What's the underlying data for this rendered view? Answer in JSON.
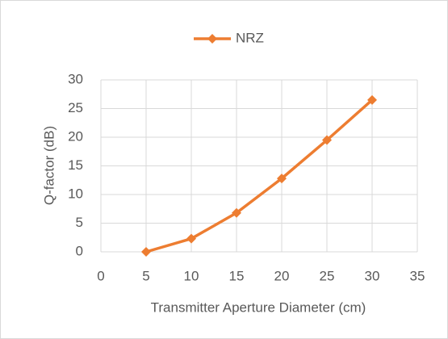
{
  "chart_data": {
    "type": "line",
    "x_label": "Transmitter Aperture Diameter (cm)",
    "y_label": "Q-factor (dB)",
    "x": [
      5,
      10,
      15,
      20,
      25,
      30
    ],
    "series": [
      {
        "name": "NRZ",
        "color": "#ed7d31",
        "values": [
          0,
          2.3,
          6.8,
          12.8,
          19.5,
          26.5
        ]
      }
    ],
    "xlim": [
      0,
      35
    ],
    "xticks": [
      0,
      5,
      10,
      15,
      20,
      25,
      30,
      35
    ],
    "ylim": [
      0,
      30
    ],
    "yticks": [
      0,
      5,
      10,
      15,
      20,
      25,
      30
    ],
    "grid": true,
    "legend": "top"
  }
}
